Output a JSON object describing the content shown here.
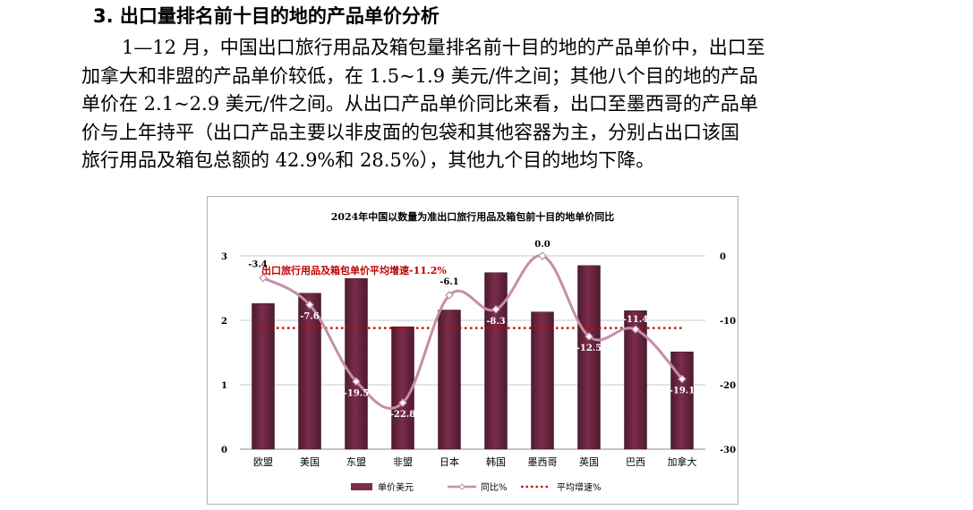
{
  "section": {
    "heading": "3. 出口量排名前十目的地的产品单价分析",
    "paragraph_lines": [
      "1—12 月，中国出口旅行用品及箱包量排名前十目的地的产品单价中，出口至",
      "加拿大和非盟的产品单价较低，在 1.5~1.9 美元/件之间；其他八个目的地的产品",
      "单价在 2.1~2.9 美元/件之间。从出口产品单价同比来看，出口至墨西哥的产品单",
      "价与上年持平（出口产品主要以非皮面的包袋和其他容器为主，分别占出口该国",
      "旅行用品及箱包总额的 42.9%和 28.5%），其他九个目的地均下降。"
    ]
  },
  "chart_data": {
    "type": "bar",
    "title": "2024年中国以数量为准出口旅行用品及箱包前十目的地单价同比",
    "categories": [
      "欧盟",
      "美国",
      "东盟",
      "非盟",
      "日本",
      "韩国",
      "墨西哥",
      "英国",
      "巴西",
      "加拿大"
    ],
    "series": [
      {
        "name": "单价美元",
        "type": "bar",
        "axis": "left",
        "color": "#7b2d4b",
        "values": [
          2.26,
          2.42,
          2.65,
          1.9,
          2.16,
          2.74,
          2.13,
          2.85,
          2.15,
          1.51
        ]
      },
      {
        "name": "同比%",
        "type": "line",
        "axis": "right",
        "color": "#c68ea6",
        "values": [
          -3.4,
          -7.6,
          -19.5,
          -22.8,
          -6.1,
          -8.3,
          0.0,
          -12.5,
          -11.4,
          -19.1
        ],
        "labels": [
          "-3.4",
          "-7.6",
          "-19.5",
          "-22.8",
          "-6.1",
          "-8.3",
          "0.0",
          "-12.5",
          "-11.4",
          "-19.1"
        ]
      },
      {
        "name": "平均增速%",
        "type": "reference",
        "axis": "right",
        "color": "#c00000",
        "value": -11.2
      }
    ],
    "left_axis": {
      "ylim": [
        0,
        3
      ],
      "ticks": [
        "0",
        "1",
        "2",
        "3"
      ]
    },
    "right_axis": {
      "ylim": [
        -30,
        0
      ],
      "ticks": [
        "-30",
        "-20",
        "-10",
        "0"
      ]
    },
    "annotation": "出口旅行用品及箱包单价平均增速-11.2%",
    "grid": true,
    "legend_position": "bottom",
    "legend": [
      "单价美元",
      "同比%",
      "平均增速%"
    ]
  }
}
